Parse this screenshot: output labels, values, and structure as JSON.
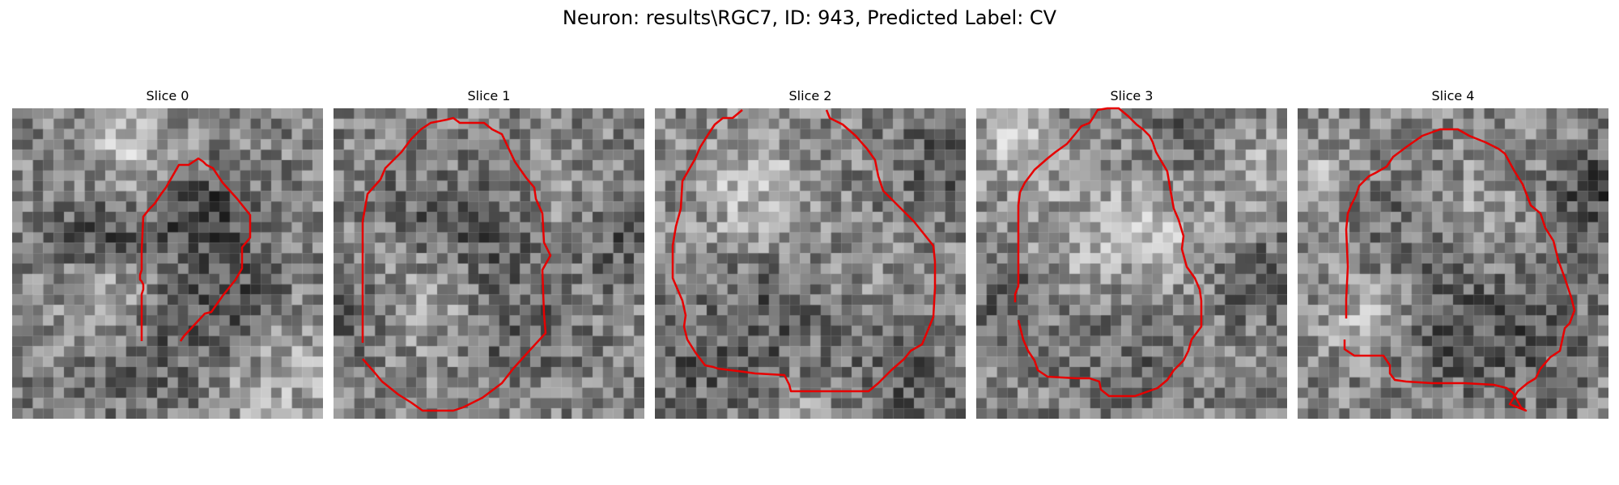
{
  "figure": {
    "title": "Neuron: results\\RGC7, ID: 943, Predicted Label: CV"
  },
  "panels": [
    {
      "title": "Slice 0",
      "contour_color": "#e60000",
      "image_name": "grayscale-slice-0"
    },
    {
      "title": "Slice 1",
      "contour_color": "#e60000",
      "image_name": "grayscale-slice-1"
    },
    {
      "title": "Slice 2",
      "contour_color": "#e60000",
      "image_name": "grayscale-slice-2"
    },
    {
      "title": "Slice 3",
      "contour_color": "#e60000",
      "image_name": "grayscale-slice-3"
    },
    {
      "title": "Slice 4",
      "contour_color": "#e60000",
      "image_name": "grayscale-slice-4"
    }
  ]
}
